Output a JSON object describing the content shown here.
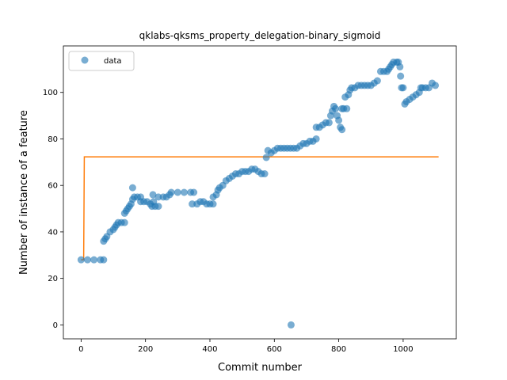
{
  "chart_data": {
    "type": "scatter",
    "title": "qklabs-qksms_property_delegation-binary_sigmoid",
    "xlabel": "Commit number",
    "ylabel": "Number of instance of a feature",
    "xlim": [
      -55,
      1165
    ],
    "ylim": [
      -6,
      120
    ],
    "xticks": [
      0,
      200,
      400,
      600,
      800,
      1000
    ],
    "yticks": [
      0,
      20,
      40,
      60,
      80,
      100
    ],
    "grid": false,
    "legend": {
      "position": "top-left",
      "entries": [
        "data"
      ]
    },
    "colors": {
      "data": "#1f77b4",
      "fit": "#ff7f0e"
    },
    "series": [
      {
        "name": "data",
        "kind": "scatter",
        "points": [
          [
            0,
            28
          ],
          [
            20,
            28
          ],
          [
            40,
            28
          ],
          [
            60,
            28
          ],
          [
            70,
            28
          ],
          [
            70,
            36
          ],
          [
            75,
            37
          ],
          [
            80,
            38
          ],
          [
            90,
            40
          ],
          [
            100,
            41
          ],
          [
            105,
            42
          ],
          [
            110,
            43
          ],
          [
            115,
            44
          ],
          [
            125,
            44
          ],
          [
            135,
            44
          ],
          [
            135,
            48
          ],
          [
            140,
            49
          ],
          [
            145,
            50
          ],
          [
            150,
            51
          ],
          [
            155,
            52
          ],
          [
            160,
            59
          ],
          [
            160,
            54
          ],
          [
            165,
            55
          ],
          [
            175,
            55
          ],
          [
            185,
            55
          ],
          [
            185,
            53
          ],
          [
            195,
            53
          ],
          [
            205,
            53
          ],
          [
            215,
            52
          ],
          [
            220,
            51
          ],
          [
            223,
            56
          ],
          [
            225,
            53
          ],
          [
            230,
            51
          ],
          [
            240,
            51
          ],
          [
            240,
            55
          ],
          [
            255,
            55
          ],
          [
            265,
            55
          ],
          [
            275,
            56
          ],
          [
            280,
            57
          ],
          [
            300,
            57
          ],
          [
            320,
            57
          ],
          [
            340,
            57
          ],
          [
            350,
            57
          ],
          [
            345,
            52
          ],
          [
            360,
            52
          ],
          [
            370,
            53
          ],
          [
            380,
            53
          ],
          [
            390,
            52
          ],
          [
            400,
            52
          ],
          [
            410,
            52
          ],
          [
            410,
            55
          ],
          [
            420,
            56
          ],
          [
            425,
            58
          ],
          [
            430,
            59
          ],
          [
            440,
            60
          ],
          [
            450,
            62
          ],
          [
            460,
            63
          ],
          [
            470,
            64
          ],
          [
            480,
            65
          ],
          [
            490,
            65
          ],
          [
            500,
            66
          ],
          [
            510,
            66
          ],
          [
            520,
            66
          ],
          [
            530,
            67
          ],
          [
            540,
            67
          ],
          [
            550,
            66
          ],
          [
            560,
            65
          ],
          [
            570,
            65
          ],
          [
            575,
            72
          ],
          [
            580,
            75
          ],
          [
            590,
            74
          ],
          [
            600,
            75
          ],
          [
            610,
            76
          ],
          [
            620,
            76
          ],
          [
            630,
            76
          ],
          [
            640,
            76
          ],
          [
            650,
            76
          ],
          [
            652,
            0
          ],
          [
            660,
            76
          ],
          [
            670,
            76
          ],
          [
            680,
            77
          ],
          [
            690,
            78
          ],
          [
            700,
            78
          ],
          [
            710,
            79
          ],
          [
            720,
            79
          ],
          [
            730,
            80
          ],
          [
            730,
            85
          ],
          [
            740,
            85
          ],
          [
            750,
            86
          ],
          [
            760,
            87
          ],
          [
            770,
            87
          ],
          [
            775,
            90
          ],
          [
            780,
            92
          ],
          [
            785,
            94
          ],
          [
            790,
            93
          ],
          [
            795,
            90
          ],
          [
            800,
            88
          ],
          [
            805,
            85
          ],
          [
            810,
            84
          ],
          [
            810,
            93
          ],
          [
            815,
            93
          ],
          [
            825,
            93
          ],
          [
            820,
            98
          ],
          [
            830,
            99
          ],
          [
            835,
            101
          ],
          [
            840,
            102
          ],
          [
            850,
            102
          ],
          [
            860,
            103
          ],
          [
            870,
            103
          ],
          [
            880,
            103
          ],
          [
            890,
            103
          ],
          [
            900,
            103
          ],
          [
            910,
            104
          ],
          [
            920,
            105
          ],
          [
            930,
            109
          ],
          [
            940,
            109
          ],
          [
            950,
            109
          ],
          [
            955,
            110
          ],
          [
            960,
            111
          ],
          [
            965,
            112
          ],
          [
            970,
            113
          ],
          [
            980,
            113
          ],
          [
            985,
            113
          ],
          [
            990,
            111
          ],
          [
            992,
            107
          ],
          [
            995,
            102
          ],
          [
            1000,
            102
          ],
          [
            1005,
            95
          ],
          [
            1010,
            96
          ],
          [
            1020,
            97
          ],
          [
            1030,
            98
          ],
          [
            1040,
            99
          ],
          [
            1050,
            100
          ],
          [
            1055,
            102
          ],
          [
            1060,
            102
          ],
          [
            1070,
            102
          ],
          [
            1080,
            102
          ],
          [
            1090,
            104
          ],
          [
            1100,
            103
          ]
        ]
      },
      {
        "name": "",
        "kind": "line",
        "points": [
          [
            0,
            28
          ],
          [
            8,
            28
          ],
          [
            10,
            72.3
          ],
          [
            200,
            72.3
          ],
          [
            400,
            72.3
          ],
          [
            600,
            72.3
          ],
          [
            800,
            72.3
          ],
          [
            1000,
            72.3
          ],
          [
            1110,
            72.3
          ]
        ]
      }
    ]
  }
}
